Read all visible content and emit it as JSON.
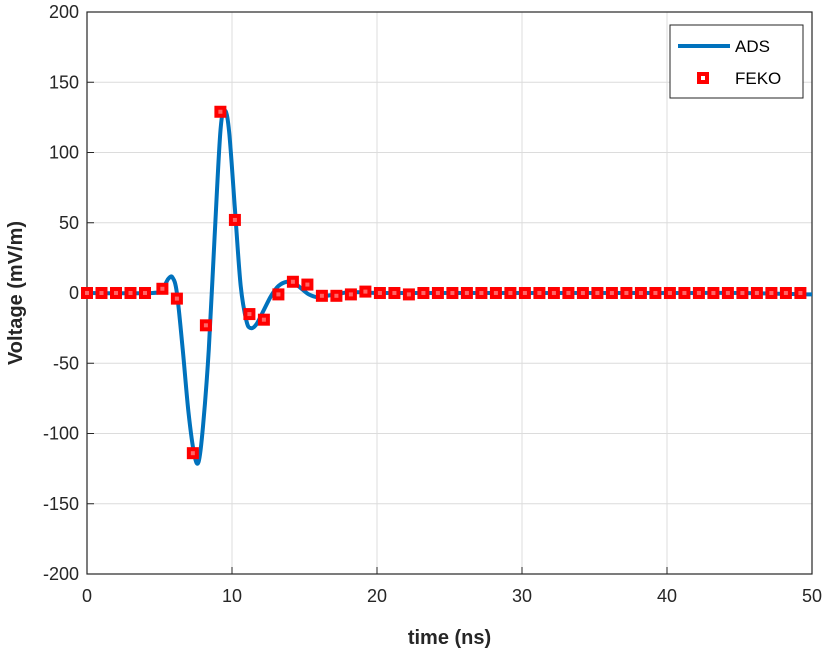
{
  "chart_data": {
    "type": "line",
    "title": "",
    "xlabel": "time (ns)",
    "ylabel": "Voltage (mV/m)",
    "xlim": [
      0,
      50
    ],
    "ylim": [
      -200,
      200
    ],
    "xticks": [
      0,
      10,
      20,
      30,
      40,
      50
    ],
    "yticks": [
      -200,
      -150,
      -100,
      -50,
      0,
      50,
      100,
      150,
      200
    ],
    "grid": true,
    "legend_position": "top-right",
    "series": [
      {
        "name": "ADS",
        "style": "line",
        "color": "#0072BD",
        "x": [
          0,
          4.5,
          5.2,
          5.6,
          5.9,
          6.2,
          6.6,
          7.0,
          7.4,
          7.7,
          8.0,
          8.4,
          8.8,
          9.2,
          9.5,
          9.8,
          10.2,
          10.6,
          11.0,
          11.3,
          11.7,
          12.2,
          12.7,
          13.2,
          13.8,
          14.3,
          14.8,
          15.3,
          15.9,
          16.5,
          17.2,
          18.0,
          19.0,
          20.0,
          22.0,
          25.0,
          30.0,
          35.0,
          40.0,
          45.0,
          50.0
        ],
        "y": [
          0,
          0,
          3,
          10,
          11,
          0,
          -40,
          -85,
          -115,
          -120,
          -95,
          -40,
          40,
          115,
          130,
          115,
          60,
          5,
          -20,
          -25,
          -22,
          -12,
          -2,
          5,
          8,
          7,
          3,
          -1,
          -3,
          -2,
          -1,
          0.5,
          0.5,
          0,
          0,
          0,
          0,
          0,
          0,
          0,
          -1
        ]
      },
      {
        "name": "FEKO",
        "style": "markers",
        "color": "#FF0000",
        "x": [
          0,
          1,
          2,
          3,
          4,
          5.2,
          6.2,
          7.3,
          8.2,
          9.2,
          10.2,
          11.2,
          12.2,
          13.2,
          14.2,
          15.2,
          16.2,
          17.2,
          18.2,
          19.2,
          20.2,
          21.2,
          22.2,
          23.2,
          24.2,
          25.2,
          26.2,
          27.2,
          28.2,
          29.2,
          30.2,
          31.2,
          32.2,
          33.2,
          34.2,
          35.2,
          36.2,
          37.2,
          38.2,
          39.2,
          40.2,
          41.2,
          42.2,
          43.2,
          44.2,
          45.2,
          46.2,
          47.2,
          48.2,
          49.2
        ],
        "y": [
          0,
          0,
          0,
          0,
          0,
          3,
          -4,
          -114,
          -23,
          129,
          52,
          -15,
          -19,
          -1,
          8,
          6,
          -2,
          -2,
          -1,
          1,
          0,
          0,
          -1,
          0,
          0,
          0,
          0,
          0,
          0,
          0,
          0,
          0,
          0,
          0,
          0,
          0,
          0,
          0,
          0,
          0,
          0,
          0,
          0,
          0,
          0,
          0,
          0,
          0,
          0,
          0
        ]
      }
    ]
  }
}
